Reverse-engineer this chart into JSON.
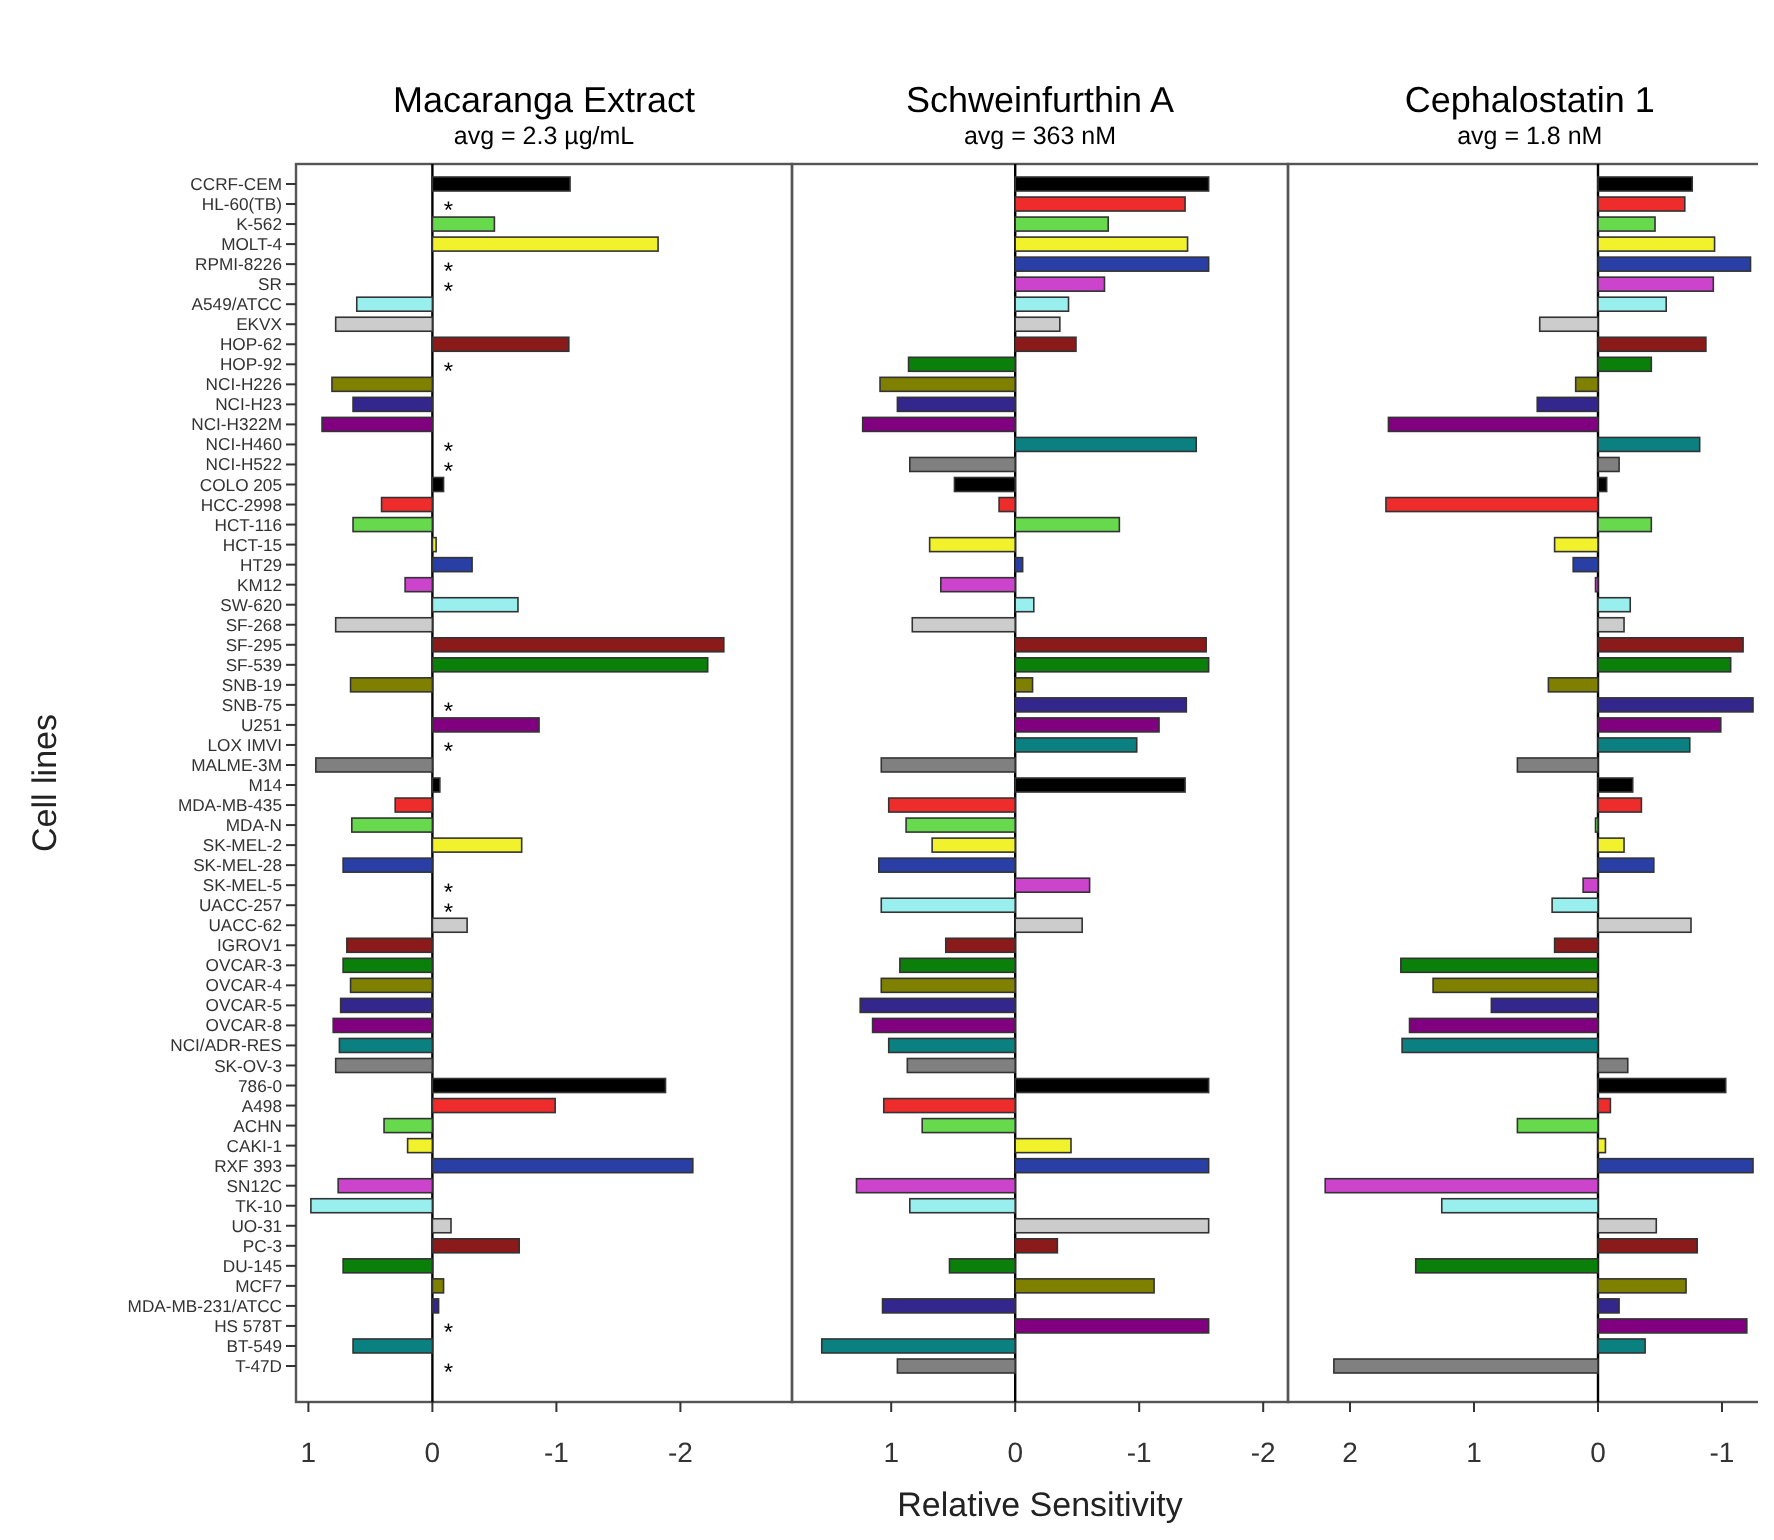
{
  "chart_data": [
    {
      "type": "bar",
      "orientation": "horizontal",
      "title": "Macaranga Extract",
      "subtitle": "avg = 2.3 µg/mL",
      "ylabel": "Cell lines",
      "xlim": [
        1.1,
        -2.9
      ],
      "xticks": [
        1,
        0,
        -1,
        -2
      ],
      "categories": [
        "CCRF-CEM",
        "HL-60(TB)",
        "K-562",
        "MOLT-4",
        "RPMI-8226",
        "SR",
        "A549/ATCC",
        "EKVX",
        "HOP-62",
        "HOP-92",
        "NCI-H226",
        "NCI-H23",
        "NCI-H322M",
        "NCI-H460",
        "NCI-H522",
        "COLO 205",
        "HCC-2998",
        "HCT-116",
        "HCT-15",
        "HT29",
        "KM12",
        "SW-620",
        "SF-268",
        "SF-295",
        "SF-539",
        "SNB-19",
        "SNB-75",
        "U251",
        "LOX IMVI",
        "MALME-3M",
        "M14",
        "MDA-MB-435",
        "MDA-N",
        "SK-MEL-2",
        "SK-MEL-28",
        "SK-MEL-5",
        "UACC-257",
        "UACC-62",
        "IGROV1",
        "OVCAR-3",
        "OVCAR-4",
        "OVCAR-5",
        "OVCAR-8",
        "NCI/ADR-RES",
        "SK-OV-3",
        "786-0",
        "A498",
        "ACHN",
        "CAKI-1",
        "RXF 393",
        "SN12C",
        "TK-10",
        "UO-31",
        "PC-3",
        "DU-145",
        "MCF7",
        "MDA-MB-231/ATCC",
        "HS 578T",
        "BT-549",
        "T-47D"
      ],
      "values": [
        -1.11,
        null,
        -0.5,
        -1.82,
        null,
        null,
        0.61,
        0.78,
        -1.1,
        null,
        0.81,
        0.64,
        0.89,
        null,
        null,
        -0.09,
        0.41,
        0.64,
        -0.03,
        -0.32,
        0.22,
        -0.69,
        0.78,
        -2.35,
        -2.22,
        0.66,
        null,
        -0.86,
        null,
        0.94,
        -0.06,
        0.3,
        0.65,
        -0.72,
        0.72,
        null,
        null,
        -0.28,
        0.69,
        0.72,
        0.66,
        0.74,
        0.8,
        0.75,
        0.78,
        -1.88,
        -0.99,
        0.39,
        0.2,
        -2.1,
        0.76,
        0.98,
        -0.15,
        -0.7,
        0.72,
        -0.09,
        -0.05,
        null,
        0.64,
        null
      ],
      "value_labels": [
        null,
        "*",
        null,
        null,
        "*",
        "*",
        null,
        null,
        null,
        "*",
        null,
        null,
        null,
        "*",
        "*",
        null,
        null,
        null,
        null,
        null,
        null,
        null,
        null,
        null,
        null,
        null,
        "*",
        null,
        "*",
        null,
        null,
        null,
        null,
        null,
        null,
        "*",
        "*",
        null,
        null,
        null,
        null,
        null,
        null,
        null,
        null,
        null,
        null,
        null,
        null,
        null,
        null,
        null,
        null,
        null,
        null,
        null,
        null,
        "*",
        null,
        "*"
      ],
      "colors": [
        "#000000",
        null,
        "#66d94c",
        "#f2f22c",
        null,
        null,
        "#99eeee",
        "#cccccc",
        "#8b1a1a",
        null,
        "#808000",
        "#33268c",
        "#800080",
        null,
        null,
        "#000000",
        "#ee2c2c",
        "#66d94c",
        "#f2f22c",
        "#2a3fa6",
        "#cc44cc",
        "#99eeee",
        "#cccccc",
        "#8b1a1a",
        "#0a800a",
        "#808000",
        null,
        "#800080",
        null,
        "#808080",
        "#000000",
        "#ee2c2c",
        "#66d94c",
        "#f2f22c",
        "#2a3fa6",
        null,
        null,
        "#cccccc",
        "#8b1a1a",
        "#0a800a",
        "#808000",
        "#33268c",
        "#800080",
        "#0a8080",
        "#808080",
        "#000000",
        "#ee2c2c",
        "#66d94c",
        "#f2f22c",
        "#2a3fa6",
        "#cc44cc",
        "#99eeee",
        "#cccccc",
        "#8b1a1a",
        "#0a800a",
        "#808000",
        "#33268c",
        null,
        "#0a8080",
        null
      ]
    },
    {
      "type": "bar",
      "orientation": "horizontal",
      "title": "Schweinfurthin A",
      "subtitle": "avg = 363 nM",
      "xlabel": "Relative Sensitivity",
      "xlim": [
        1.8,
        -2.2
      ],
      "xticks": [
        1,
        0,
        -1,
        -2
      ],
      "tick_labels": "x",
      "categories": [
        null,
        null,
        null,
        null,
        null,
        null,
        null,
        null,
        null,
        null,
        null,
        null,
        null,
        null,
        null,
        null,
        null,
        null,
        null,
        null,
        null,
        null,
        null,
        null,
        null,
        null,
        null,
        null,
        null,
        null,
        null,
        null,
        null,
        null,
        null,
        null,
        null,
        null,
        null,
        null,
        null,
        null,
        null,
        null,
        null,
        null,
        null,
        null,
        null,
        null,
        null,
        null,
        null,
        null,
        null,
        null,
        null,
        null,
        null,
        null
      ],
      "values": [
        -1.56,
        -1.37,
        -0.75,
        -1.39,
        -1.56,
        -0.72,
        -0.43,
        -0.36,
        -0.49,
        0.86,
        1.09,
        0.95,
        1.23,
        -1.46,
        0.85,
        0.49,
        0.13,
        -0.84,
        0.69,
        -0.06,
        0.6,
        -0.15,
        0.83,
        -1.54,
        -1.56,
        -0.14,
        -1.38,
        -1.16,
        -0.98,
        1.08,
        -1.37,
        1.02,
        0.88,
        0.67,
        1.1,
        -0.6,
        1.08,
        -0.54,
        0.56,
        0.93,
        1.08,
        1.25,
        1.15,
        1.02,
        0.87,
        -1.56,
        1.06,
        0.75,
        -0.45,
        -1.56,
        1.28,
        0.85,
        -1.56,
        -0.34,
        0.53,
        -1.12,
        1.07,
        -1.56,
        1.56,
        0.95
      ],
      "colors": [
        "#000000",
        "#ee2c2c",
        "#66d94c",
        "#f2f22c",
        "#2a3fa6",
        "#cc44cc",
        "#99eeee",
        "#cccccc",
        "#8b1a1a",
        "#0a800a",
        "#808000",
        "#33268c",
        "#800080",
        "#0a8080",
        "#808080",
        "#000000",
        "#ee2c2c",
        "#66d94c",
        "#f2f22c",
        "#2a3fa6",
        "#cc44cc",
        "#99eeee",
        "#cccccc",
        "#8b1a1a",
        "#0a800a",
        "#808000",
        "#33268c",
        "#800080",
        "#0a8080",
        "#808080",
        "#000000",
        "#ee2c2c",
        "#66d94c",
        "#f2f22c",
        "#2a3fa6",
        "#cc44cc",
        "#99eeee",
        "#cccccc",
        "#8b1a1a",
        "#0a800a",
        "#808000",
        "#33268c",
        "#800080",
        "#0a8080",
        "#808080",
        "#000000",
        "#ee2c2c",
        "#66d94c",
        "#f2f22c",
        "#2a3fa6",
        "#cc44cc",
        "#99eeee",
        "#cccccc",
        "#8b1a1a",
        "#0a800a",
        "#808000",
        "#33268c",
        "#800080",
        "#0a8080",
        "#808080"
      ]
    },
    {
      "type": "bar",
      "orientation": "horizontal",
      "title": "Cephalostatin 1",
      "subtitle": "avg = 1.8 nM",
      "xlim": [
        2.5,
        -1.4
      ],
      "xticks": [
        2,
        1,
        0,
        -1
      ],
      "tick_labels": "x",
      "categories": [
        null,
        null,
        null,
        null,
        null,
        null,
        null,
        null,
        null,
        null,
        null,
        null,
        null,
        null,
        null,
        null,
        null,
        null,
        null,
        null,
        null,
        null,
        null,
        null,
        null,
        null,
        null,
        null,
        null,
        null,
        null,
        null,
        null,
        null,
        null,
        null,
        null,
        null,
        null,
        null,
        null,
        null,
        null,
        null,
        null,
        null,
        null,
        null,
        null,
        null,
        null,
        null,
        null,
        null,
        null,
        null,
        null,
        null,
        null,
        null
      ],
      "values": [
        -0.76,
        -0.7,
        -0.46,
        -0.94,
        -1.23,
        -0.93,
        -0.55,
        0.47,
        -0.87,
        -0.43,
        0.18,
        0.49,
        1.69,
        -0.82,
        -0.17,
        -0.07,
        1.71,
        -0.43,
        0.35,
        0.2,
        0.02,
        -0.26,
        -0.21,
        -1.17,
        -1.07,
        0.4,
        -1.25,
        -0.99,
        -0.74,
        0.65,
        -0.28,
        -0.35,
        0.02,
        -0.21,
        -0.45,
        0.12,
        0.37,
        -0.75,
        0.35,
        1.59,
        1.33,
        0.86,
        1.52,
        1.58,
        -0.24,
        -1.03,
        -0.1,
        0.65,
        -0.06,
        -1.25,
        2.2,
        1.26,
        -0.47,
        -0.8,
        1.47,
        -0.71,
        -0.17,
        -1.2,
        -0.38,
        2.13
      ],
      "colors": [
        "#000000",
        "#ee2c2c",
        "#66d94c",
        "#f2f22c",
        "#2a3fa6",
        "#cc44cc",
        "#99eeee",
        "#cccccc",
        "#8b1a1a",
        "#0a800a",
        "#808000",
        "#33268c",
        "#800080",
        "#0a8080",
        "#808080",
        "#000000",
        "#ee2c2c",
        "#66d94c",
        "#f2f22c",
        "#2a3fa6",
        "#cc44cc",
        "#99eeee",
        "#cccccc",
        "#8b1a1a",
        "#0a800a",
        "#808000",
        "#33268c",
        "#800080",
        "#0a8080",
        "#808080",
        "#000000",
        "#ee2c2c",
        "#66d94c",
        "#f2f22c",
        "#2a3fa6",
        "#cc44cc",
        "#99eeee",
        "#cccccc",
        "#8b1a1a",
        "#0a800a",
        "#808000",
        "#33268c",
        "#800080",
        "#0a8080",
        "#808080",
        "#000000",
        "#ee2c2c",
        "#66d94c",
        "#f2f22c",
        "#2a3fa6",
        "#cc44cc",
        "#99eeee",
        "#cccccc",
        "#8b1a1a",
        "#0a800a",
        "#808000",
        "#33268c",
        "#800080",
        "#0a8080",
        "#808080"
      ]
    }
  ]
}
